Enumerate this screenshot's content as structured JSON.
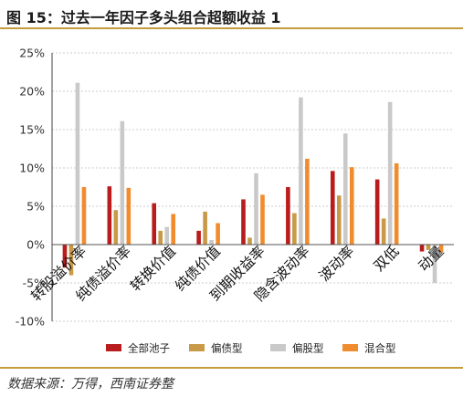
{
  "figure": {
    "title": "图 15：过去一年因子多头组合超额收益 1",
    "source": "数据来源：万得，西南证券整"
  },
  "chart_data": {
    "type": "bar",
    "categories": [
      "转股溢价率",
      "纯债溢价率",
      "转换价值",
      "纯债价值",
      "到期收益率",
      "隐含波动率",
      "波动率",
      "双低",
      "动量"
    ],
    "series": [
      {
        "name": "全部池子",
        "color": "#b81c1c",
        "values": [
          -3.0,
          7.6,
          5.4,
          1.8,
          5.9,
          7.5,
          9.6,
          8.5,
          -0.9
        ]
      },
      {
        "name": "偏债型",
        "color": "#c89a48",
        "values": [
          -4.0,
          4.5,
          1.8,
          4.3,
          0.9,
          4.1,
          6.4,
          3.4,
          -0.7
        ]
      },
      {
        "name": "偏股型",
        "color": "#c9c9c9",
        "values": [
          21.1,
          16.1,
          2.3,
          0.6,
          9.3,
          19.2,
          14.5,
          18.6,
          -5.0
        ]
      },
      {
        "name": "混合型",
        "color": "#f08c2e",
        "values": [
          7.5,
          7.4,
          4.0,
          2.8,
          6.5,
          11.2,
          10.1,
          10.6,
          -1.0
        ]
      }
    ],
    "ylim": [
      -10,
      25
    ],
    "yticks": [
      -10,
      -5,
      0,
      5,
      10,
      15,
      20,
      25
    ],
    "ytick_labels": [
      "-10%",
      "-5%",
      "0%",
      "5%",
      "10%",
      "15%",
      "20%",
      "25%"
    ],
    "grid": true,
    "legend_position": "bottom"
  }
}
